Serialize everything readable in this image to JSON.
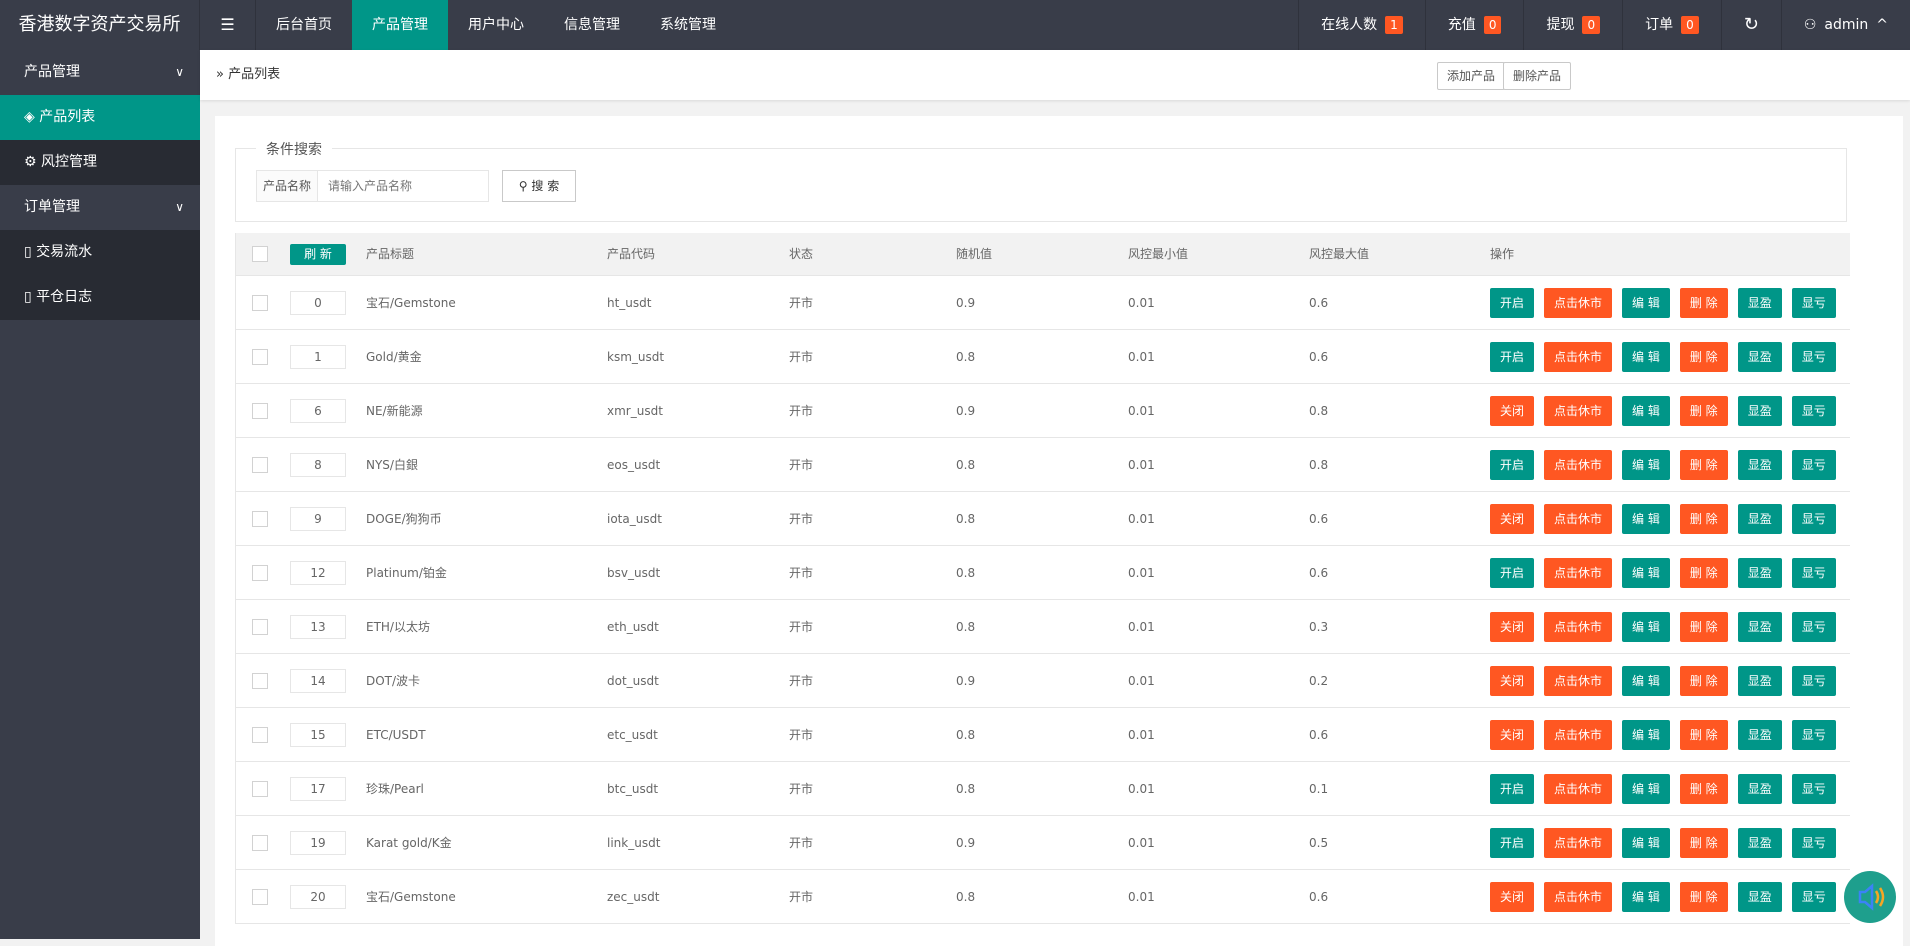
{
  "header": {
    "brand": "香港数字资产交易所",
    "nav": [
      "后台首页",
      "产品管理",
      "用户中心",
      "信息管理",
      "系统管理"
    ],
    "active_nav": 1,
    "right": [
      {
        "label": "在线人数",
        "count": "1"
      },
      {
        "label": "充值",
        "count": "0"
      },
      {
        "label": "提现",
        "count": "0"
      },
      {
        "label": "订单",
        "count": "0"
      }
    ],
    "user": "admin"
  },
  "sidebar": {
    "groups": [
      {
        "label": "产品管理",
        "items": [
          {
            "label": "产品列表",
            "icon": "layers-icon",
            "active": true
          },
          {
            "label": "风控管理",
            "icon": "gear-icon"
          }
        ]
      },
      {
        "label": "订单管理",
        "items": [
          {
            "label": "交易流水",
            "icon": "clipboard-icon"
          },
          {
            "label": "平仓日志",
            "icon": "clipboard-icon"
          }
        ]
      }
    ]
  },
  "breadcrumb": "产品列表",
  "toolbar": {
    "add": "添加产品",
    "del": "删除产品"
  },
  "search": {
    "legend": "条件搜索",
    "label": "产品名称",
    "placeholder": "请输入产品名称",
    "button": "搜 索"
  },
  "table": {
    "refresh": "刷 新",
    "headers": [
      "产品标题",
      "产品代码",
      "状态",
      "随机值",
      "风控最小值",
      "风控最大值",
      "操作"
    ],
    "actions": {
      "open": "开启",
      "close": "关闭",
      "halt": "点击休市",
      "edit": "编 辑",
      "delete": "删 除",
      "profit": "显盈",
      "loss": "显亏"
    },
    "rows": [
      {
        "sort": "0",
        "title": "宝石/Gemstone",
        "code": "ht_usdt",
        "status": "开市",
        "rand": "0.9",
        "min": "0.01",
        "max": "0.6",
        "toggle": "open"
      },
      {
        "sort": "1",
        "title": "Gold/黄金",
        "code": "ksm_usdt",
        "status": "开市",
        "rand": "0.8",
        "min": "0.01",
        "max": "0.6",
        "toggle": "open"
      },
      {
        "sort": "6",
        "title": "NE/新能源",
        "code": "xmr_usdt",
        "status": "开市",
        "rand": "0.9",
        "min": "0.01",
        "max": "0.8",
        "toggle": "close"
      },
      {
        "sort": "8",
        "title": "NYS/白銀",
        "code": "eos_usdt",
        "status": "开市",
        "rand": "0.8",
        "min": "0.01",
        "max": "0.8",
        "toggle": "open"
      },
      {
        "sort": "9",
        "title": "DOGE/狗狗币",
        "code": "iota_usdt",
        "status": "开市",
        "rand": "0.8",
        "min": "0.01",
        "max": "0.6",
        "toggle": "close"
      },
      {
        "sort": "12",
        "title": "Platinum/铂金",
        "code": "bsv_usdt",
        "status": "开市",
        "rand": "0.8",
        "min": "0.01",
        "max": "0.6",
        "toggle": "open"
      },
      {
        "sort": "13",
        "title": "ETH/以太坊",
        "code": "eth_usdt",
        "status": "开市",
        "rand": "0.8",
        "min": "0.01",
        "max": "0.3",
        "toggle": "close"
      },
      {
        "sort": "14",
        "title": "DOT/波卡",
        "code": "dot_usdt",
        "status": "开市",
        "rand": "0.9",
        "min": "0.01",
        "max": "0.2",
        "toggle": "close"
      },
      {
        "sort": "15",
        "title": "ETC/USDT",
        "code": "etc_usdt",
        "status": "开市",
        "rand": "0.8",
        "min": "0.01",
        "max": "0.6",
        "toggle": "close"
      },
      {
        "sort": "17",
        "title": "珍珠/Pearl",
        "code": "btc_usdt",
        "status": "开市",
        "rand": "0.8",
        "min": "0.01",
        "max": "0.1",
        "toggle": "open"
      },
      {
        "sort": "19",
        "title": "Karat gold/K金",
        "code": "link_usdt",
        "status": "开市",
        "rand": "0.9",
        "min": "0.01",
        "max": "0.5",
        "toggle": "open"
      },
      {
        "sort": "20",
        "title": "宝石/Gemstone",
        "code": "zec_usdt",
        "status": "开市",
        "rand": "0.8",
        "min": "0.01",
        "max": "0.6",
        "toggle": "close"
      }
    ]
  },
  "colors": {
    "header": "#393D49",
    "accent": "#009688",
    "warn": "#FF5722"
  }
}
